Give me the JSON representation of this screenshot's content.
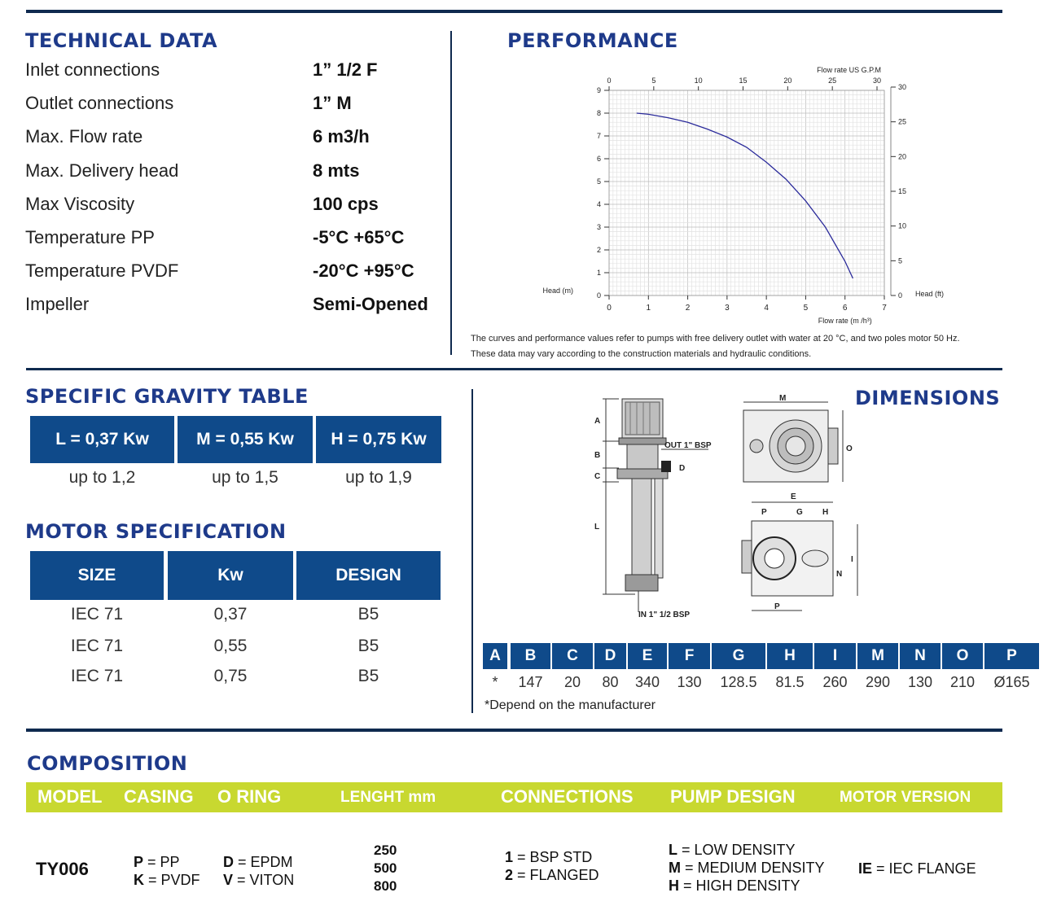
{
  "technical_data": {
    "title": "TECHNICAL DATA",
    "rows": [
      {
        "label": "Inlet connections",
        "value": "1” 1/2 F"
      },
      {
        "label": "Outlet connections",
        "value": "1” M"
      },
      {
        "label": "Max. Flow rate",
        "value": "6 m3/h"
      },
      {
        "label": "Max. Delivery head",
        "value": "8 mts"
      },
      {
        "label": "Max Viscosity",
        "value": "100 cps"
      },
      {
        "label": "Temperature PP",
        "value": "-5°C +65°C"
      },
      {
        "label": "Temperature PVDF",
        "value": "-20°C +95°C"
      },
      {
        "label": "Impeller",
        "value": "Semi-Opened"
      }
    ]
  },
  "performance": {
    "title": "PERFORMANCE",
    "note_line1": "The curves and performance values refer to pumps with free delivery outlet with water at 20 °C, and two poles motor 50 Hz.",
    "note_line2": "These data may vary according to the construction materials and hydraulic conditions."
  },
  "chart_data": {
    "type": "line",
    "x_label": "Flow rate",
    "x_unit": "(m /h³)",
    "x_top_label": "Flow rate US G.P.M",
    "y_label": "Head (m)",
    "y_right_label": "Head (ft)",
    "xlim": [
      0,
      7
    ],
    "ylim": [
      0,
      9
    ],
    "x_ticks": [
      "0",
      "1",
      "2",
      "3",
      "4",
      "5",
      "6",
      "7"
    ],
    "y_ticks": [
      "0",
      "1",
      "2",
      "3",
      "4",
      "5",
      "6",
      "7",
      "8",
      "9"
    ],
    "x_top_ticks": [
      "0",
      "5",
      "10",
      "15",
      "20",
      "25",
      "30"
    ],
    "y_right_ticks": [
      "0",
      "5",
      "10",
      "15",
      "20",
      "25",
      "30"
    ],
    "grid": true,
    "series": [
      {
        "x": [
          0.7,
          1.0,
          1.5,
          2.0,
          2.5,
          3.0,
          3.5,
          4.0,
          4.5,
          5.0,
          5.5,
          6.0,
          6.2
        ],
        "y": [
          8.0,
          7.95,
          7.8,
          7.6,
          7.3,
          6.95,
          6.5,
          5.85,
          5.1,
          4.15,
          3.0,
          1.5,
          0.75
        ]
      }
    ],
    "line_color": "#2a2a9a"
  },
  "specific_gravity": {
    "title": "SPECIFIC GRAVITY TABLE",
    "columns": [
      {
        "header": "L = 0,37 Kw",
        "value": "up to 1,2"
      },
      {
        "header": "M = 0,55 Kw",
        "value": "up to 1,5"
      },
      {
        "header": "H = 0,75 Kw",
        "value": "up to 1,9"
      }
    ]
  },
  "motor_specification": {
    "title": "MOTOR SPECIFICATION",
    "headers": [
      "SIZE",
      "Kw",
      "DESIGN"
    ],
    "rows": [
      [
        "IEC 71",
        "0,37",
        "B5"
      ],
      [
        "IEC 71",
        "0,55",
        "B5"
      ],
      [
        "IEC 71",
        "0,75",
        "B5"
      ]
    ]
  },
  "dimensions": {
    "title": "DIMENSIONS",
    "drawing_labels": {
      "out": "OUT 1\" BSP",
      "in": "IN 1\" 1/2 BSP",
      "a": "A",
      "b": "B",
      "c": "C",
      "d": "D",
      "l": "L",
      "m": "M",
      "o": "O",
      "e": "E",
      "p": "P",
      "g": "G",
      "h": "H",
      "i": "I",
      "n": "N"
    },
    "headers": [
      "A",
      "B",
      "C",
      "D",
      "E",
      "F",
      "G",
      "H",
      "I",
      "M",
      "N",
      "O",
      "P"
    ],
    "values": [
      "*",
      "147",
      "20",
      "80",
      "340",
      "130",
      "128.5",
      "81.5",
      "260",
      "290",
      "130",
      "210",
      "Ø165"
    ],
    "footnote": "*Depend on the manufacturer"
  },
  "composition": {
    "title": "COMPOSITION",
    "headers": [
      "MODEL",
      "CASING",
      "O RING",
      "LENGHT mm",
      "CONNECTIONS",
      "PUMP DESIGN",
      "MOTOR VERSION"
    ],
    "model": "TY006",
    "casing": [
      {
        "code": "P",
        "text": "= PP"
      },
      {
        "code": "K",
        "text": "= PVDF"
      }
    ],
    "oring": [
      {
        "code": "D",
        "text": "= EPDM"
      },
      {
        "code": "V",
        "text": "= VITON"
      }
    ],
    "length": [
      "250",
      "500",
      "800"
    ],
    "connections": [
      {
        "code": "1",
        "text": "= BSP STD"
      },
      {
        "code": "2",
        "text": "= FLANGED"
      }
    ],
    "pump_design": [
      {
        "code": "L",
        "text": "= LOW DENSITY"
      },
      {
        "code": "M",
        "text": "= MEDIUM DENSITY"
      },
      {
        "code": "H",
        "text": "= HIGH DENSITY"
      }
    ],
    "motor_version": [
      {
        "code": "IE",
        "text": "= IEC FLANGE"
      }
    ]
  },
  "colors": {
    "navy": "#0f2a4f",
    "blue_header": "#0f4a8a",
    "title_blue": "#1e3a8a",
    "green_bar": "#c8d830"
  }
}
